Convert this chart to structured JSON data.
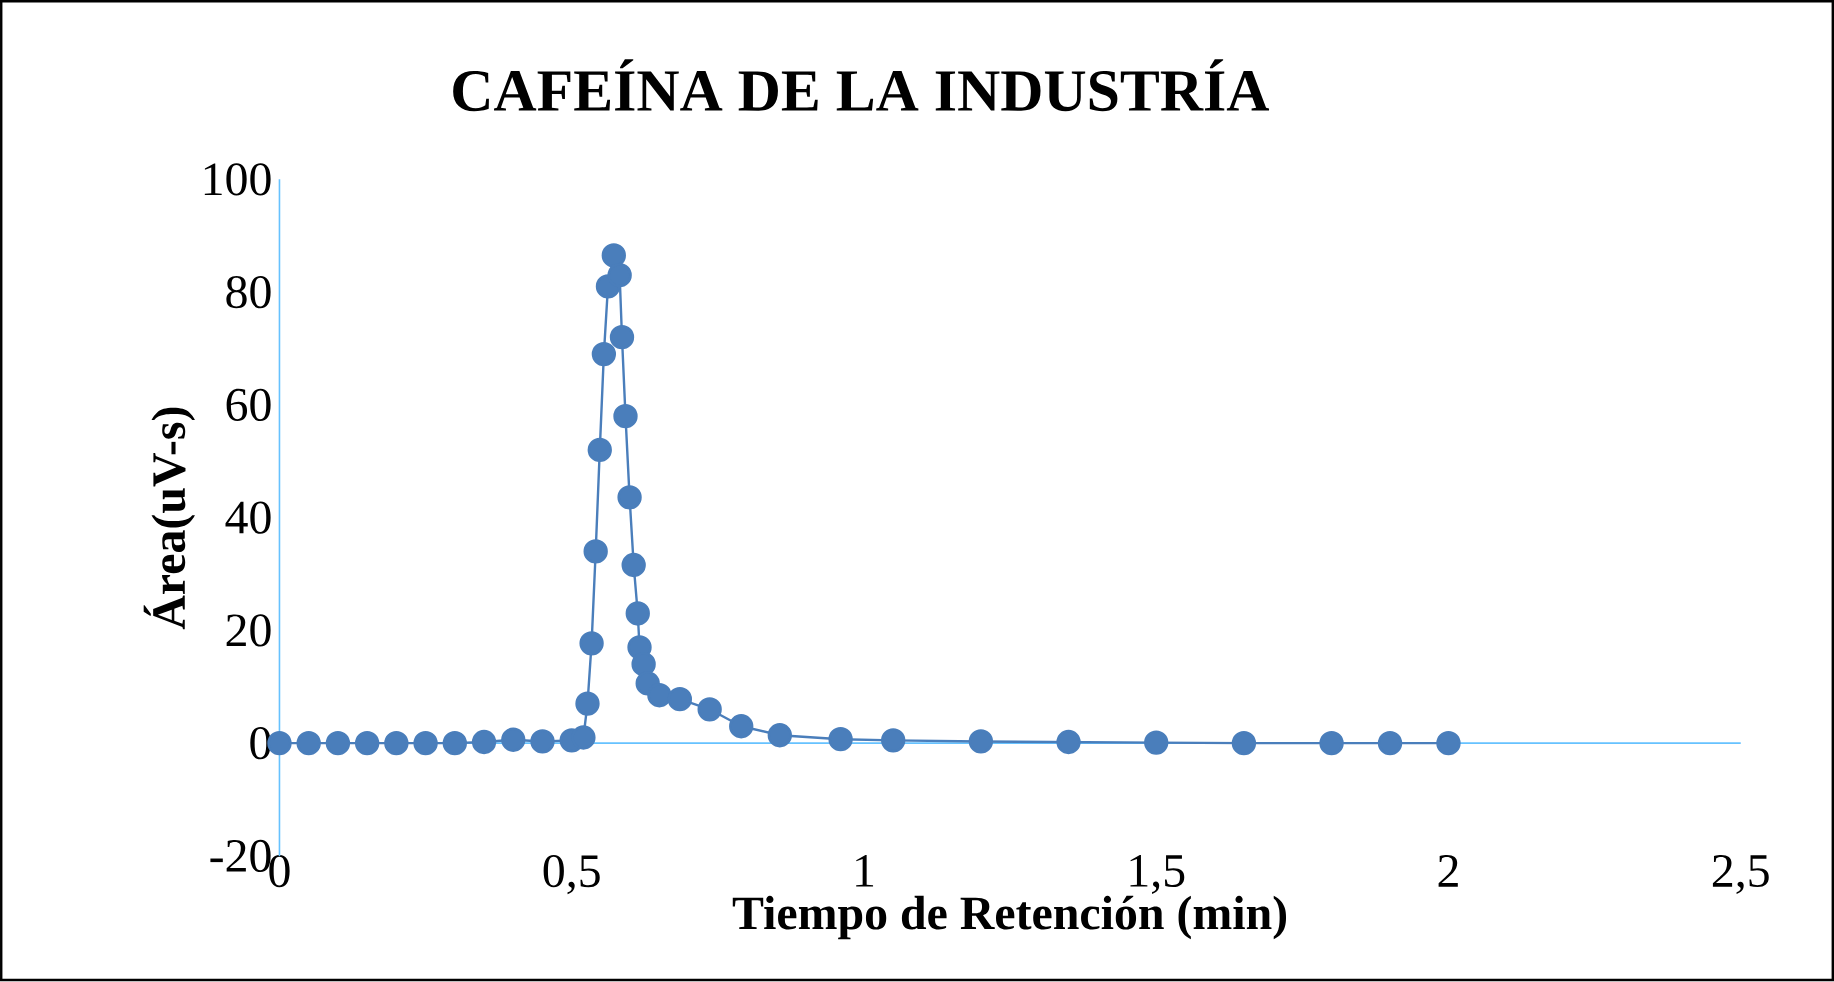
{
  "chart_data": {
    "type": "line",
    "title": "CAFEÍNA DE LA INDUSTRÍA",
    "xlabel": "Tiempo de Retención (min)",
    "ylabel": "Área(uV-s)",
    "xlim": [
      0,
      2.5
    ],
    "ylim": [
      -20,
      100
    ],
    "xticks": [
      0,
      {
        "value": 0.5,
        "label": "0,5"
      },
      1,
      {
        "value": 1.5,
        "label": "1,5"
      },
      2,
      {
        "value": 2.5,
        "label": "2,5"
      }
    ],
    "yticks": [
      -20,
      0,
      20,
      40,
      60,
      80,
      100
    ],
    "grid": false,
    "marker": "circle",
    "line_style": "solid",
    "series": [
      {
        "color": "#4a7ebb",
        "x": [
          0,
          0.05,
          0.1,
          0.15,
          0.2,
          0.25,
          0.3,
          0.35,
          0.4,
          0.45,
          0.5,
          0.52,
          0.527,
          0.534,
          0.541,
          0.548,
          0.555,
          0.562,
          0.572,
          0.582,
          0.586,
          0.592,
          0.599,
          0.606,
          0.613,
          0.616,
          0.623,
          0.63,
          0.65,
          0.685,
          0.736,
          0.79,
          0.856,
          0.96,
          1.05,
          1.2,
          1.35,
          1.5,
          1.65,
          1.8,
          1.9,
          2
        ],
        "values": [
          0,
          0,
          0,
          0,
          0,
          0,
          0,
          0.2,
          0.6,
          0.3,
          0.5,
          1,
          7,
          17.7,
          34,
          52,
          69,
          81,
          86.5,
          83,
          72,
          58,
          43.6,
          31.6,
          23,
          17,
          14,
          10.6,
          8.5,
          7.8,
          6,
          3,
          1.4,
          0.7,
          0.5,
          0.3,
          0.2,
          0.1,
          0,
          0,
          0,
          0
        ]
      }
    ]
  }
}
